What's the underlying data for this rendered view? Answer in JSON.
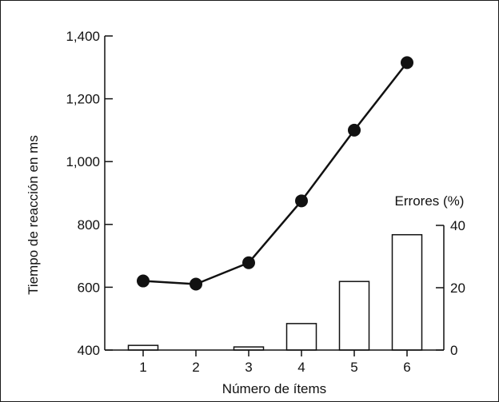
{
  "chart_data": {
    "type": "bar+line",
    "xlabel": "Número de ítems",
    "ylabel": "Tiempo de reacción en ms",
    "y2label": "Errores (%)",
    "categories": [
      "1",
      "2",
      "3",
      "4",
      "5",
      "6"
    ],
    "ylim": [
      400,
      1400
    ],
    "y_ticks": [
      400,
      600,
      800,
      1000,
      1200,
      1400
    ],
    "y_tick_labels": [
      "400",
      "600",
      "800",
      "1,000",
      "1,200",
      "1,400"
    ],
    "y2lim": [
      0,
      40
    ],
    "y2_ticks": [
      0,
      20,
      40
    ],
    "y2_tick_labels": [
      "0",
      "20",
      "40"
    ],
    "grid": false,
    "series": [
      {
        "type": "line",
        "axis": "left",
        "values": [
          620,
          610,
          678,
          875,
          1100,
          1315
        ]
      },
      {
        "type": "bar",
        "axis": "right",
        "values": [
          1.5,
          0,
          1,
          8.5,
          22,
          37
        ]
      }
    ],
    "colors": {
      "line": "#111111",
      "bar_fill": "#ffffff",
      "bar_stroke": "#111111"
    }
  }
}
